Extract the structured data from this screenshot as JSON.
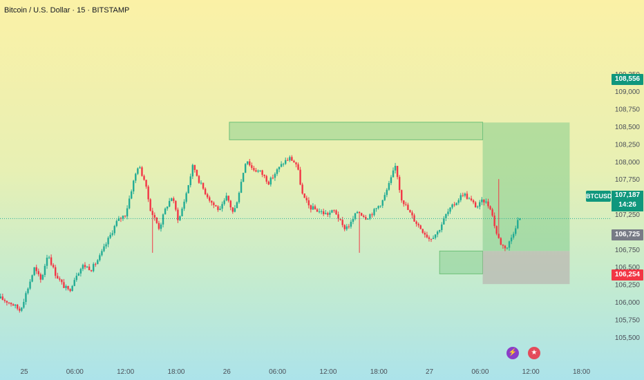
{
  "header": {
    "title": "Bitcoin / U.S. Dollar · 15 · BITSTAMP"
  },
  "price_tags": {
    "target": "108,556",
    "entry": "106,725",
    "stop": "106,254",
    "current_symbol": "BTCUSD",
    "current_price": "107,187",
    "countdown": "14:26"
  },
  "colors": {
    "up": "#22ab94",
    "down": "#f23645",
    "profit_zone": "#7cc98a",
    "loss_zone": "#b9b0ad",
    "tag_green": "#10977d",
    "tag_red": "#f23645"
  },
  "icons": [
    "lightning-calendar-icon",
    "us-flag-icon"
  ],
  "chart_data": {
    "type": "candlestick",
    "symbol": "BTCUSD",
    "interval": "15",
    "exchange": "BITSTAMP",
    "ylim": [
      105300,
      109350
    ],
    "y_ticks": [
      105500,
      105750,
      106000,
      106250,
      106500,
      106750,
      107000,
      107250,
      107500,
      107750,
      108000,
      108250,
      108500,
      108750,
      109000,
      109250
    ],
    "y_tick_labels": [
      "105,500",
      "105,750",
      "106,000",
      "106,250",
      "106,500",
      "106,750",
      "107,000",
      "107,250",
      "107,500",
      "107,750",
      "108,000",
      "108,250",
      "108,500",
      "108,750",
      "109,000",
      "109,250"
    ],
    "x_range": [
      "25 00:00",
      "28 21:30"
    ],
    "x_ticks": [
      {
        "label": "25",
        "t": 0
      },
      {
        "label": "06:00",
        "t": 6
      },
      {
        "label": "12:00",
        "t": 12
      },
      {
        "label": "18:00",
        "t": 18
      },
      {
        "label": "26",
        "t": 24
      },
      {
        "label": "06:00",
        "t": 30
      },
      {
        "label": "12:00",
        "t": 36
      },
      {
        "label": "18:00",
        "t": 42
      },
      {
        "label": "27",
        "t": 48
      },
      {
        "label": "06:00",
        "t": 54
      },
      {
        "label": "12:00",
        "t": 60
      },
      {
        "label": "18:00",
        "t": 66
      }
    ],
    "x_range_hours": [
      -2.9,
      71.0
    ],
    "price_path": [
      [
        -2.8,
        106050
      ],
      [
        -1.5,
        105980
      ],
      [
        -0.5,
        105880
      ],
      [
        0.3,
        106150
      ],
      [
        1.2,
        106480
      ],
      [
        2.0,
        106300
      ],
      [
        2.8,
        106700
      ],
      [
        3.6,
        106420
      ],
      [
        4.5,
        106250
      ],
      [
        5.3,
        106150
      ],
      [
        6.2,
        106400
      ],
      [
        7.0,
        106520
      ],
      [
        8.0,
        106470
      ],
      [
        9.0,
        106650
      ],
      [
        10.0,
        106900
      ],
      [
        11.0,
        107150
      ],
      [
        12.0,
        107250
      ],
      [
        12.8,
        107650
      ],
      [
        13.5,
        107950
      ],
      [
        14.2,
        107750
      ],
      [
        15.0,
        107300
      ],
      [
        16.0,
        107050
      ],
      [
        16.8,
        107350
      ],
      [
        17.5,
        107500
      ],
      [
        18.3,
        107150
      ],
      [
        19.2,
        107550
      ],
      [
        20.0,
        107950
      ],
      [
        20.8,
        107700
      ],
      [
        21.5,
        107550
      ],
      [
        22.3,
        107400
      ],
      [
        23.2,
        107300
      ],
      [
        24.0,
        107500
      ],
      [
        24.8,
        107250
      ],
      [
        25.5,
        107600
      ],
      [
        26.3,
        108050
      ],
      [
        27.0,
        107900
      ],
      [
        28.0,
        107850
      ],
      [
        29.0,
        107700
      ],
      [
        29.8,
        107850
      ],
      [
        30.8,
        108000
      ],
      [
        31.5,
        108050
      ],
      [
        32.3,
        107950
      ],
      [
        33.0,
        107500
      ],
      [
        33.8,
        107350
      ],
      [
        34.8,
        107300
      ],
      [
        35.8,
        107250
      ],
      [
        36.8,
        107300
      ],
      [
        37.8,
        107050
      ],
      [
        38.6,
        107100
      ],
      [
        39.5,
        107300
      ],
      [
        40.5,
        107200
      ],
      [
        41.5,
        107300
      ],
      [
        42.5,
        107450
      ],
      [
        43.3,
        107700
      ],
      [
        44.0,
        107950
      ],
      [
        44.6,
        107500
      ],
      [
        45.5,
        107300
      ],
      [
        46.3,
        107150
      ],
      [
        47.3,
        107000
      ],
      [
        48.0,
        106900
      ],
      [
        49.0,
        107000
      ],
      [
        50.0,
        107250
      ],
      [
        51.0,
        107400
      ],
      [
        52.0,
        107550
      ],
      [
        52.8,
        107450
      ],
      [
        53.6,
        107350
      ],
      [
        54.4,
        107450
      ],
      [
        55.2,
        107350
      ],
      [
        56.0,
        106950
      ],
      [
        56.6,
        106800
      ],
      [
        57.2,
        106780
      ],
      [
        57.8,
        106950
      ],
      [
        58.4,
        107150
      ],
      [
        58.8,
        107187
      ]
    ],
    "highlights": [
      {
        "kind": "wick-spike",
        "t": 15.2,
        "low": 106700
      },
      {
        "kind": "wick-spike",
        "t": 39.7,
        "low": 106700
      },
      {
        "kind": "wick-spike",
        "t": 56.1,
        "high": 107750
      }
    ],
    "annotations": [
      {
        "type": "rect",
        "label": "supply zone",
        "t1": 24.3,
        "t2": 54.3,
        "y1": 108310,
        "y2": 108560
      },
      {
        "type": "rect",
        "label": "demand zone",
        "t1": 49.2,
        "t2": 54.3,
        "y1": 106400,
        "y2": 106725
      },
      {
        "type": "long-position",
        "t1": 54.3,
        "t2": 64.6,
        "entry": 106725,
        "target": 108556,
        "stop": 106254
      }
    ],
    "current_price": 107187
  }
}
